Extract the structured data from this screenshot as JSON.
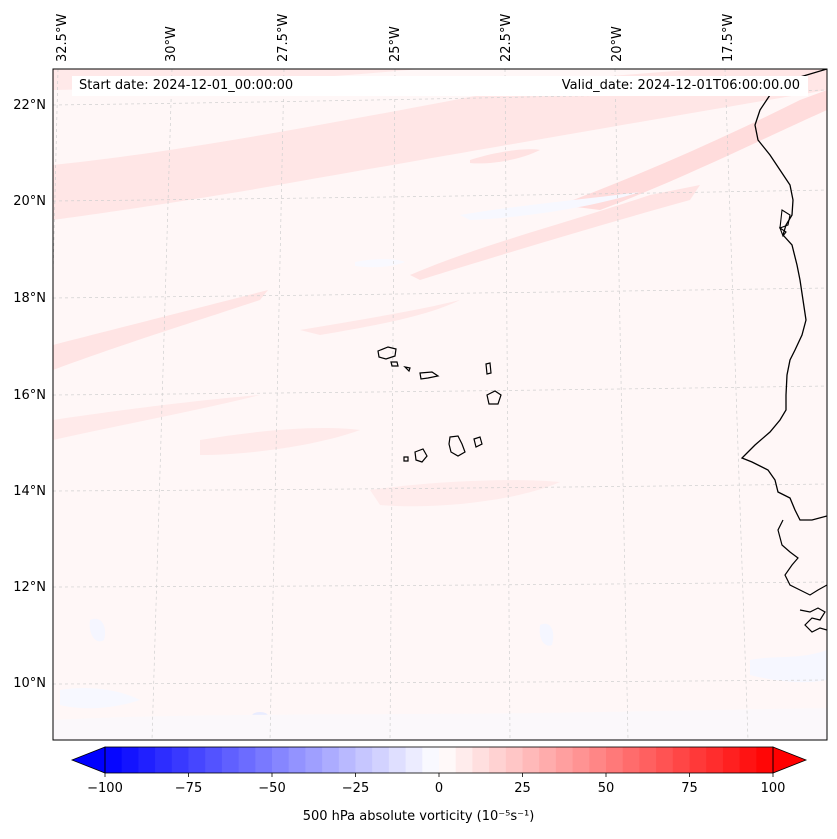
{
  "map": {
    "start_date": "Start date: 2024-12-01_00:00:00",
    "valid_date": "Valid_date: 2024-12-01T06:00:00.00",
    "lon_labels": [
      "32.5°W",
      "30°W",
      "27.5°W",
      "25°W",
      "22.5°W",
      "20°W",
      "17.5°W"
    ],
    "lat_labels": [
      "22°N",
      "20°N",
      "18°N",
      "16°N",
      "14°N",
      "12°N",
      "10°N"
    ],
    "colors": {
      "positive": "#ff0000",
      "negative": "#0000ff",
      "coastline": "#000000"
    }
  },
  "colorbar": {
    "ticks": [
      "−100",
      "−75",
      "−50",
      "−25",
      "0",
      "25",
      "50",
      "75",
      "100"
    ],
    "label": "500 hPa absolute vorticity (10⁻⁵s⁻¹)"
  }
}
